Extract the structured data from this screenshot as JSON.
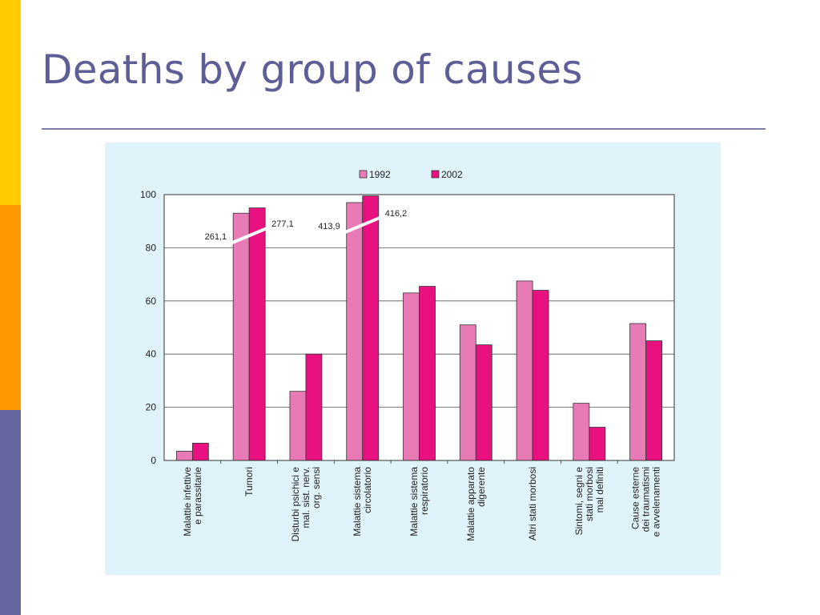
{
  "slide": {
    "title": "Deaths by group of causes",
    "theme_colors": {
      "strip_top": "#ffcc00",
      "strip_middle": "#ff9900",
      "strip_bottom": "#6666a0",
      "title": "#5e5e96"
    }
  },
  "chart_data": {
    "type": "bar",
    "title": "",
    "xlabel": "",
    "ylabel": "",
    "ylim": [
      0,
      100
    ],
    "yticks": [
      0,
      20,
      40,
      60,
      80,
      100
    ],
    "grid": true,
    "legend_position": "top-center",
    "categories": [
      [
        "Malattie infettive",
        "e parassitarie"
      ],
      [
        "Tumori"
      ],
      [
        "Disturbi psichici e",
        "mal. sist. nerv.",
        "org. sensi"
      ],
      [
        "Malattie sistema",
        "circolatorio"
      ],
      [
        "Malattie sistema",
        "respiratorio"
      ],
      [
        "Malattie apparato",
        "digerente"
      ],
      [
        "Altri stati morbosi"
      ],
      [
        "Sintomi, segni e",
        "stati morbosi",
        "mal definiti"
      ],
      [
        "Cause esterne",
        "dei traumatismi",
        "e avvelenamenti"
      ]
    ],
    "series": [
      {
        "name": "1992",
        "color": "#e87bb5",
        "values": [
          3.5,
          93,
          26,
          97,
          63,
          51,
          67.5,
          21.5,
          51.5
        ]
      },
      {
        "name": "2002",
        "color": "#e8117f",
        "values": [
          6.5,
          95,
          40,
          99.5,
          65.5,
          43.5,
          64,
          12.5,
          45
        ]
      }
    ],
    "annotations": [
      {
        "category_index": 1,
        "series": "1992",
        "text": "261,1"
      },
      {
        "category_index": 1,
        "series": "2002",
        "text": "277,1"
      },
      {
        "category_index": 3,
        "series": "1992",
        "text": "413,9"
      },
      {
        "category_index": 3,
        "series": "2002",
        "text": "416,2"
      }
    ]
  }
}
